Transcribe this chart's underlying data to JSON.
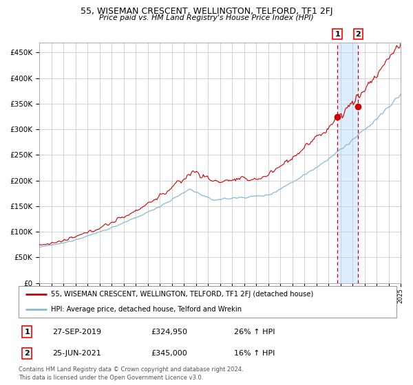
{
  "title": "55, WISEMAN CRESCENT, WELLINGTON, TELFORD, TF1 2FJ",
  "subtitle": "Price paid vs. HM Land Registry's House Price Index (HPI)",
  "legend_line1": "55, WISEMAN CRESCENT, WELLINGTON, TELFORD, TF1 2FJ (detached house)",
  "legend_line2": "HPI: Average price, detached house, Telford and Wrekin",
  "footer": "Contains HM Land Registry data © Crown copyright and database right 2024.\nThis data is licensed under the Open Government Licence v3.0.",
  "sale1_label": "1",
  "sale1_date": "27-SEP-2019",
  "sale1_price": "£324,950",
  "sale1_hpi": "26% ↑ HPI",
  "sale2_label": "2",
  "sale2_date": "25-JUN-2021",
  "sale2_price": "£345,000",
  "sale2_hpi": "16% ↑ HPI",
  "ylim": [
    0,
    470000
  ],
  "yticks": [
    0,
    50000,
    100000,
    150000,
    200000,
    250000,
    300000,
    350000,
    400000,
    450000
  ],
  "red_line_color": "#cc0000",
  "blue_line_color": "#88b8d8",
  "marker_color": "#cc0000",
  "vline_color": "#cc0000",
  "shade_color": "#ddeeff",
  "grid_color": "#cccccc",
  "bg_color": "#ffffff",
  "sale1_year": 2019.75,
  "sale2_year": 2021.48,
  "sale1_value": 324950,
  "sale2_value": 345000,
  "xmin": 1995,
  "xmax": 2025
}
